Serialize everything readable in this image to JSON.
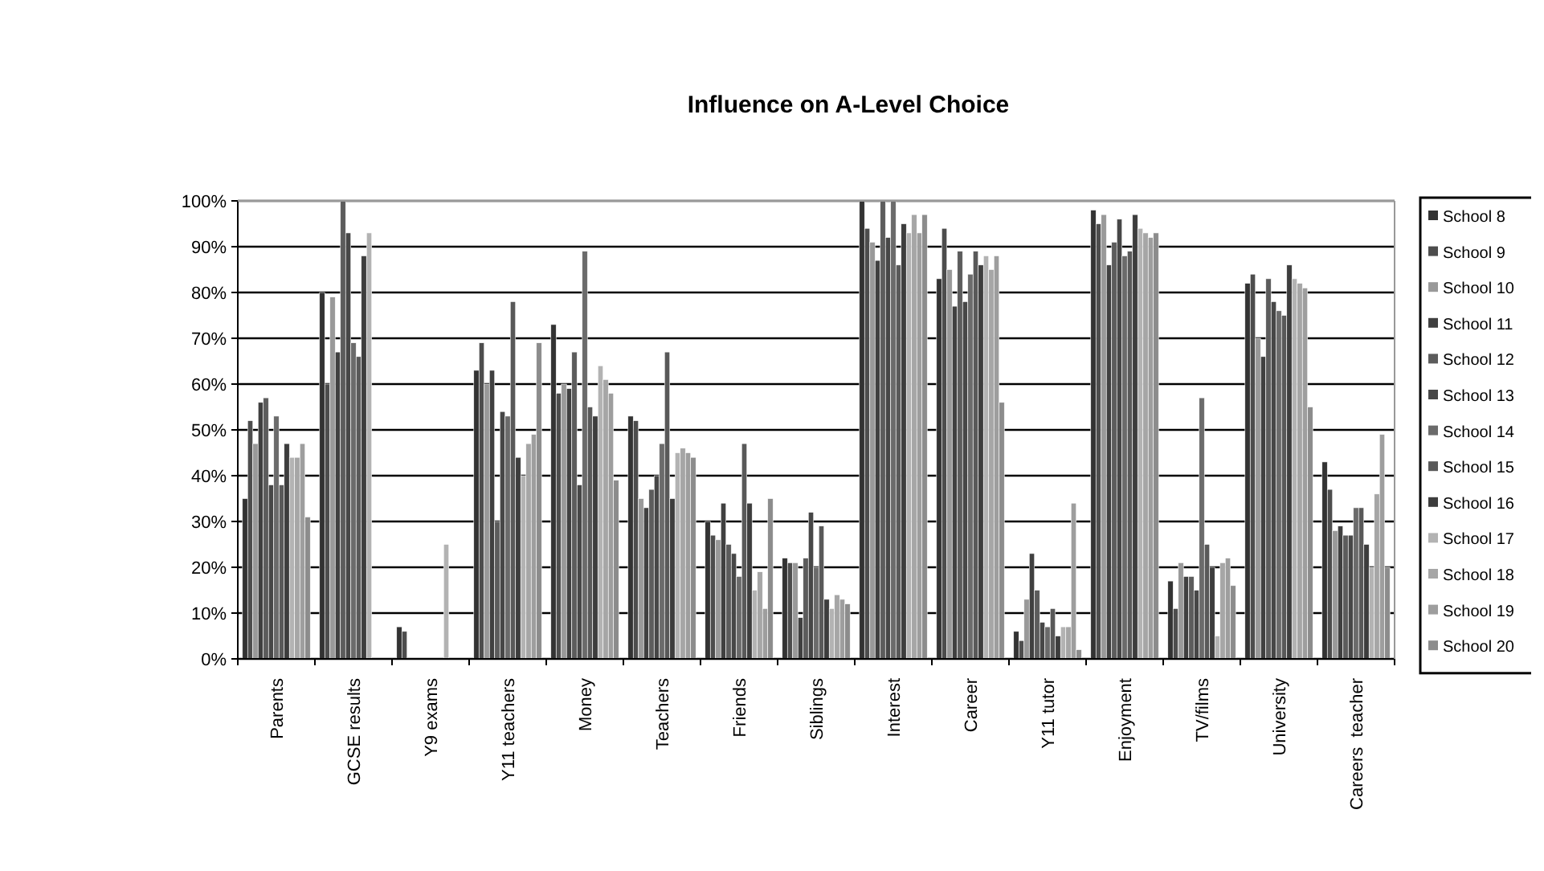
{
  "chart_data": {
    "type": "bar",
    "title": "Influence on A-Level Choice",
    "categories": [
      "Parents",
      "GCSE results",
      "Y9 exams",
      "Y11 teachers",
      "Money",
      "Teachers",
      "Friends",
      "Siblings",
      "Interest",
      "Career",
      "Y11 tutor",
      "Enjoyment",
      "TV/films",
      "University",
      "Careers  teacher"
    ],
    "ylim": [
      0,
      100
    ],
    "yticks": [
      {
        "value": 0,
        "label": "0%"
      },
      {
        "value": 10,
        "label": "10%"
      },
      {
        "value": 20,
        "label": "20%"
      },
      {
        "value": 30,
        "label": "30%"
      },
      {
        "value": 40,
        "label": "40%"
      },
      {
        "value": 50,
        "label": "50%"
      },
      {
        "value": 60,
        "label": "60%"
      },
      {
        "value": 70,
        "label": "70%"
      },
      {
        "value": 80,
        "label": "80%"
      },
      {
        "value": 90,
        "label": "90%"
      },
      {
        "value": 100,
        "label": "100%"
      }
    ],
    "grid": "y",
    "legend": "right",
    "series": [
      {
        "name": "School 8",
        "color": "#333333",
        "values": [
          35,
          80,
          7,
          63,
          73,
          53,
          30,
          22,
          100,
          83,
          6,
          98,
          17,
          82,
          43
        ]
      },
      {
        "name": "School 9",
        "color": "#4d4d4d",
        "values": [
          52,
          60,
          6,
          69,
          58,
          52,
          27,
          21,
          94,
          94,
          4,
          95,
          11,
          84,
          37
        ]
      },
      {
        "name": "School 10",
        "color": "#999999",
        "values": [
          47,
          79,
          null,
          60,
          60,
          35,
          26,
          21,
          91,
          85,
          13,
          97,
          21,
          70,
          28
        ]
      },
      {
        "name": "School 11",
        "color": "#404040",
        "values": [
          56,
          67,
          null,
          63,
          59,
          33,
          34,
          9,
          87,
          77,
          23,
          86,
          18,
          66,
          29
        ]
      },
      {
        "name": "School 12",
        "color": "#5c5c5c",
        "values": [
          57,
          100,
          null,
          30,
          67,
          37,
          25,
          22,
          100,
          89,
          15,
          91,
          18,
          83,
          27
        ]
      },
      {
        "name": "School 13",
        "color": "#474747",
        "values": [
          38,
          93,
          null,
          54,
          38,
          40,
          23,
          32,
          92,
          78,
          8,
          96,
          15,
          78,
          27
        ]
      },
      {
        "name": "School 14",
        "color": "#6b6b6b",
        "values": [
          53,
          69,
          null,
          53,
          89,
          47,
          18,
          20,
          100,
          84,
          7,
          88,
          57,
          76,
          33
        ]
      },
      {
        "name": "School 15",
        "color": "#595959",
        "values": [
          38,
          66,
          null,
          78,
          55,
          67,
          47,
          29,
          86,
          89,
          11,
          89,
          25,
          75,
          33
        ]
      },
      {
        "name": "School 16",
        "color": "#3d3d3d",
        "values": [
          47,
          88,
          null,
          44,
          53,
          35,
          34,
          13,
          95,
          86,
          5,
          97,
          20,
          86,
          25
        ]
      },
      {
        "name": "School 17",
        "color": "#b3b3b3",
        "values": [
          44,
          93,
          25,
          40,
          64,
          45,
          15,
          11,
          93,
          88,
          7,
          94,
          5,
          83,
          20
        ]
      },
      {
        "name": "School 18",
        "color": "#a6a6a6",
        "values": [
          44,
          null,
          null,
          47,
          61,
          46,
          19,
          14,
          97,
          85,
          7,
          93,
          21,
          82,
          36
        ]
      },
      {
        "name": "School 19",
        "color": "#9e9e9e",
        "values": [
          47,
          null,
          null,
          49,
          58,
          45,
          11,
          13,
          93,
          88,
          34,
          92,
          22,
          81,
          49
        ]
      },
      {
        "name": "School 20",
        "color": "#8c8c8c",
        "values": [
          31,
          null,
          null,
          69,
          39,
          44,
          35,
          12,
          97,
          56,
          2,
          93,
          16,
          55,
          20
        ]
      }
    ]
  }
}
